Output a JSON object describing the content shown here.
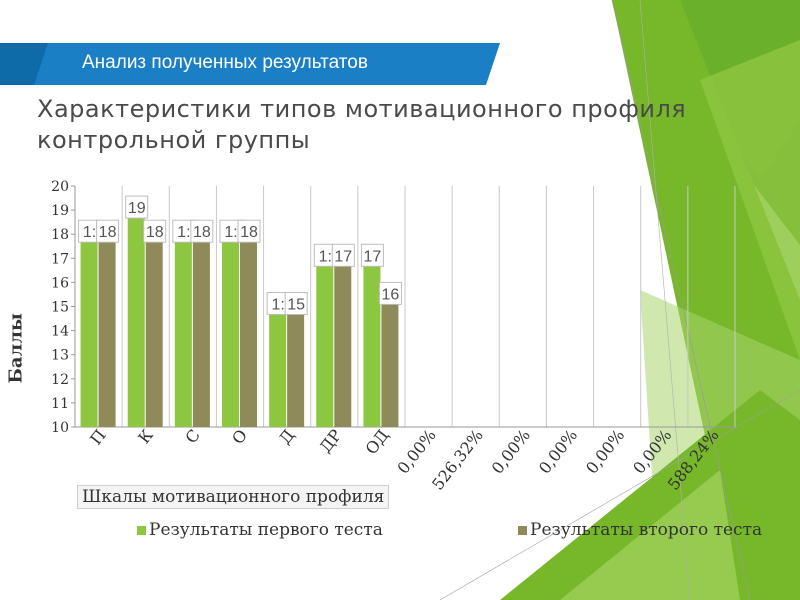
{
  "header": {
    "section_title": "Анализ полученных результатов"
  },
  "slide": {
    "title": "Характеристики типов мотивационного профиля контрольной группы"
  },
  "colors": {
    "banner": "#1a7fc4",
    "series1": "#8dc63f",
    "series2": "#8e8a5a",
    "accent_green": "#76b82a"
  },
  "chart_data": {
    "type": "bar",
    "categories": [
      "П",
      "К",
      "С",
      "О",
      "Д",
      "ДР",
      "ОД",
      "0,00%",
      "526,32%",
      "0,00%",
      "0,00%",
      "0,00%",
      "0,00%",
      "588,24%"
    ],
    "series": [
      {
        "name": "Результаты первого теста",
        "values": [
          18,
          19,
          18,
          18,
          15,
          17,
          17,
          null,
          null,
          null,
          null,
          null,
          null,
          null
        ],
        "labels": [
          "1:",
          "19",
          "1:",
          "1:",
          "1:",
          "1:",
          "17"
        ]
      },
      {
        "name": "Результаты второго теста",
        "values": [
          18,
          18,
          18,
          18,
          15,
          17,
          16,
          null,
          null,
          null,
          null,
          null,
          null,
          null
        ],
        "labels": [
          "18",
          "18",
          "18",
          "18",
          "15",
          "17",
          "16"
        ]
      }
    ],
    "yticks": [
      "10",
      "11",
      "12",
      "13",
      "14",
      "15",
      "16",
      "17",
      "18",
      "19",
      "20"
    ],
    "ylim": [
      10,
      20
    ],
    "xlabel": "Шкалы мотивационного профиля",
    "ylabel": "Баллы",
    "legend_position": "bottom",
    "grid": "vertical"
  }
}
